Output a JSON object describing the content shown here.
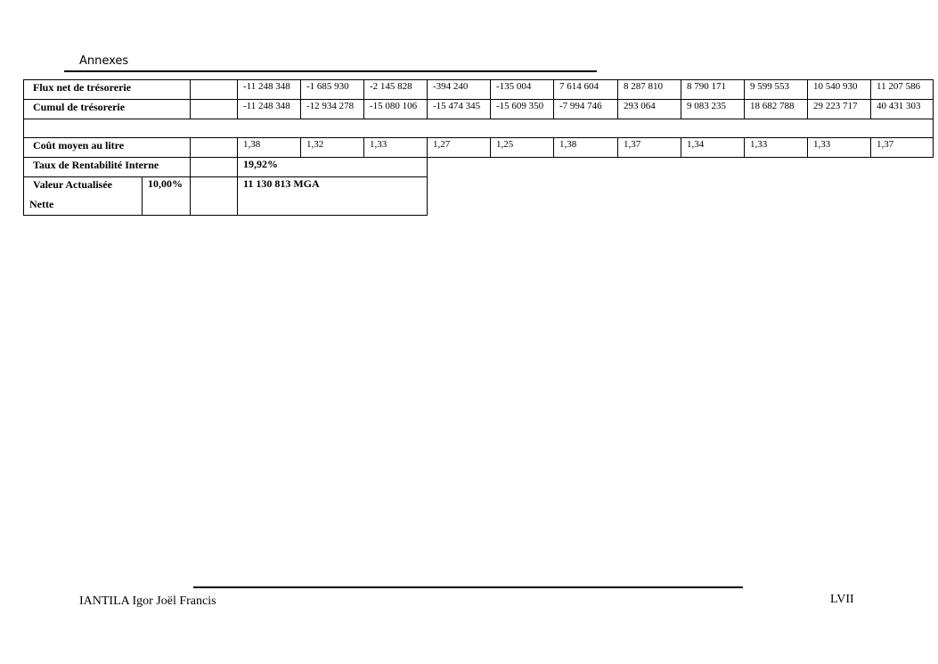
{
  "header": {
    "title": "Annexes"
  },
  "table": {
    "flux": {
      "label": "Flux net de trésorerie",
      "values": [
        "-11 248 348",
        "-1 685 930",
        "-2 145 828",
        "-394 240",
        "-135 004",
        "7 614 604",
        "8 287 810",
        "8 790 171",
        "9 599 553",
        "10 540 930",
        "11 207 586"
      ]
    },
    "cumul": {
      "label": "Cumul  de trésorerie",
      "values": [
        "-11 248 348",
        "-12 934 278",
        "-15 080 106",
        "-15 474 345",
        "-15 609 350",
        "-7 994 746",
        "293 064",
        "9 083 235",
        "18 682 788",
        "29 223 717",
        "40 431 303"
      ]
    },
    "cout": {
      "label": "Coût moyen au litre",
      "values": [
        "1,38",
        "1,32",
        "1,33",
        "1,27",
        "1,25",
        "1,38",
        "1,37",
        "1,34",
        "1,33",
        "1,33",
        "1,37"
      ]
    },
    "tri": {
      "label": "Taux de Rentabilité Interne",
      "value": "19,92%"
    },
    "van": {
      "label_line1": "Valeur Actualisée",
      "label_line2": "Nette",
      "rate": "10,00%",
      "value": "11 130 813 MGA"
    }
  },
  "footer": {
    "author": "IANTILA Igor Joël Francis",
    "page": "LVII"
  }
}
